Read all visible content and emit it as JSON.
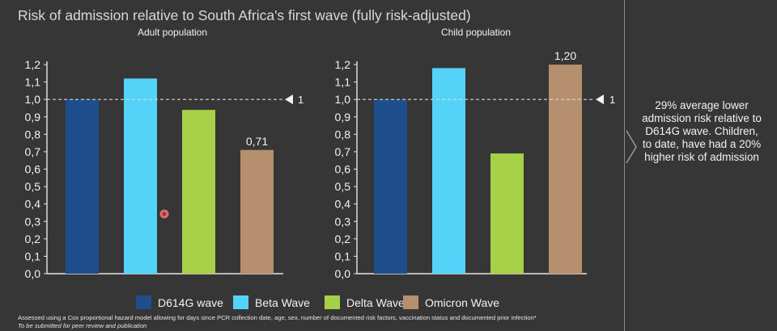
{
  "title": "Risk of admission relative to South Africa's first wave (fully risk-adjusted)",
  "side_note": "29% average lower admission risk relative to D614G wave. Children, to date, have had a 20% higher risk of admission",
  "footnotes": {
    "line1": "Assessed using a Cox proportional hazard model allowing for days since PCR collection date, age, sex, number of documented risk factors, vaccination status and documented prior infection*",
    "line2": "To be submitted for peer review and publication"
  },
  "colors": {
    "background": "#363636",
    "D614G wave": "#1f4e8c",
    "Beta Wave": "#55d2f7",
    "Delta Wave": "#a6d048",
    "Omicron Wave": "#b68f6f"
  },
  "icons": {
    "cursor": "cursor-dot-icon",
    "chevron": "chevron-right-icon",
    "reference": "triangle-left-icon"
  },
  "chart_data": [
    {
      "type": "bar",
      "title": "Adult population",
      "categories": [
        "D614G wave",
        "Beta Wave",
        "Delta Wave",
        "Omicron Wave"
      ],
      "values": [
        1.0,
        1.12,
        0.94,
        0.71
      ],
      "data_labels": [
        "",
        "",
        "",
        "0,71"
      ],
      "ylim": [
        0,
        1.2
      ],
      "yticks": [
        "0,0",
        "0,1",
        "0,2",
        "0,3",
        "0,4",
        "0,5",
        "0,6",
        "0,7",
        "0,8",
        "0,9",
        "1,0",
        "1,1",
        "1,2"
      ],
      "reference_line": {
        "value": 1.0,
        "label": "1"
      },
      "xlabel": "",
      "ylabel": ""
    },
    {
      "type": "bar",
      "title": "Child population",
      "categories": [
        "D614G wave",
        "Beta Wave",
        "Delta Wave",
        "Omicron Wave"
      ],
      "values": [
        1.0,
        1.18,
        0.69,
        1.2
      ],
      "data_labels": [
        "",
        "",
        "",
        "1,20"
      ],
      "ylim": [
        0,
        1.2
      ],
      "yticks": [
        "0,0",
        "0,1",
        "0,2",
        "0,3",
        "0,4",
        "0,5",
        "0,6",
        "0,7",
        "0,8",
        "0,9",
        "1,0",
        "1,1",
        "1,2"
      ],
      "reference_line": {
        "value": 1.0,
        "label": "1"
      },
      "xlabel": "",
      "ylabel": ""
    }
  ],
  "legend": [
    "D614G wave",
    "Beta Wave",
    "Delta Wave",
    "Omicron Wave"
  ]
}
